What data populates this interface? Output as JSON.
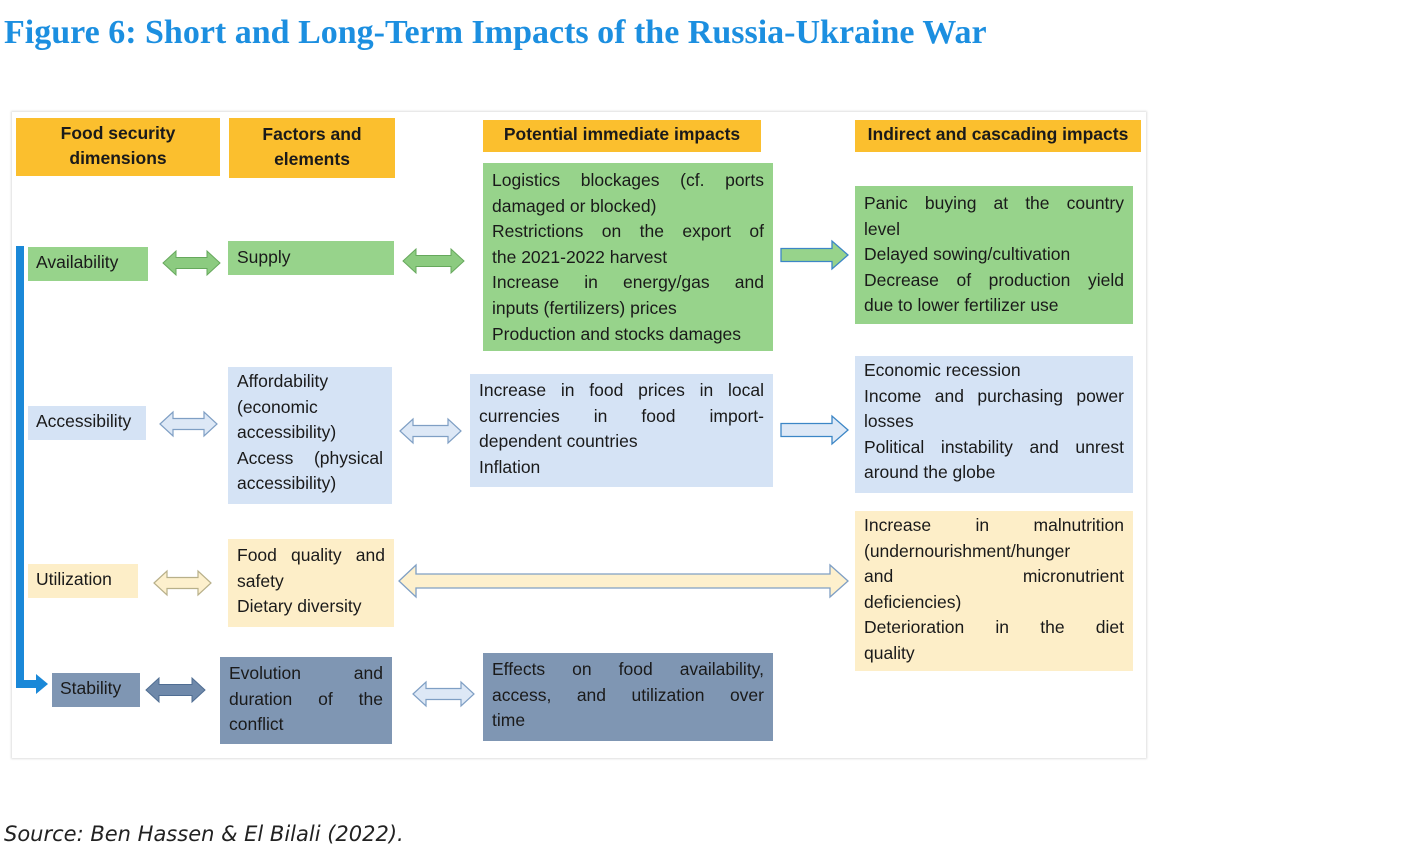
{
  "title": "Figure 6: Short and Long-Term Impacts of the Russia-Ukraine War",
  "source": "Source: Ben Hassen & El Bilali (2022).",
  "colors": {
    "title": "#1c8fe0",
    "header": "#fbbf2e",
    "availability": "#97d38b",
    "accessibility": "#d5e3f5",
    "utilization": "#fdeec8",
    "stability": "#7f96b3",
    "timeline": "#1a88d8"
  },
  "headers": {
    "dimensions": [
      "Food security",
      "dimensions"
    ],
    "factors": [
      "Factors and",
      "elements"
    ],
    "immediate": "Potential immediate impacts",
    "indirect": "Indirect and cascading impacts"
  },
  "rows": {
    "availability": {
      "dimension": "Availability",
      "factors": [
        "Supply"
      ],
      "immediate": [
        "Logistics blockages (cf. ports",
        "damaged or blocked)",
        "Restrictions on the export of",
        "the 2021-2022 harvest",
        "Increase in energy/gas and",
        "inputs (fertilizers) prices",
        "Production and stocks damages"
      ],
      "indirect": [
        "Panic buying at the country",
        "level",
        "Delayed sowing/cultivation",
        "Decrease of production yield",
        "due to lower fertilizer use"
      ]
    },
    "accessibility": {
      "dimension": "Accessibility",
      "factors": [
        "Affordability",
        "(economic",
        "accessibility)",
        "Access (physical",
        "accessibility)"
      ],
      "immediate": [
        "Increase in food prices in local",
        "currencies in food import-",
        "dependent countries",
        "Inflation"
      ],
      "indirect": [
        "Economic recession",
        "Income and purchasing power",
        "losses",
        "Political instability and unrest",
        "around the globe"
      ]
    },
    "utilization": {
      "dimension": "Utilization",
      "factors": [
        "Food quality and",
        "safety",
        "Dietary diversity"
      ],
      "indirect": [
        "Increase in malnutrition",
        "(undernourishment/hunger",
        "and micronutrient",
        "deficiencies)",
        "Deterioration in the diet",
        "quality"
      ]
    },
    "stability": {
      "dimension": "Stability",
      "factors": [
        "Evolution and",
        "duration of the",
        "conflict"
      ],
      "immediate": [
        "Effects on food availability,",
        "access, and utilization over",
        "time"
      ]
    }
  }
}
